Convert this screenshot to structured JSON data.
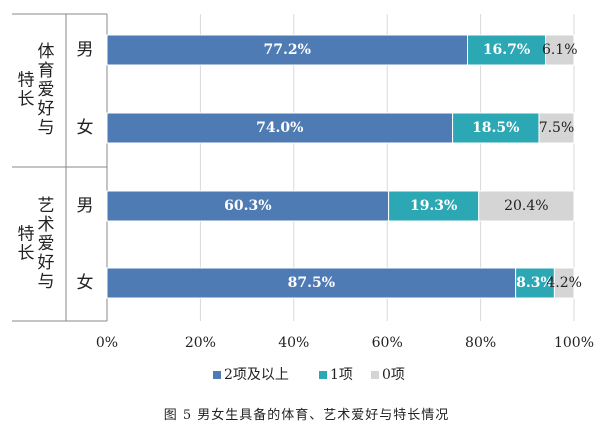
{
  "figure_caption": "图 5   男女生具备的体育、艺术爱好与特长情况",
  "chart_data": {
    "type": "bar",
    "orientation": "horizontal",
    "stacked": "percent",
    "groups": [
      {
        "label": "体育爱好与特长",
        "label_lines": [
          "体育爱好与",
          "特长"
        ]
      },
      {
        "label": "艺术爱好与特长",
        "label_lines": [
          "艺术爱好与",
          "特长"
        ]
      }
    ],
    "categories": [
      {
        "group": 0,
        "label": "男"
      },
      {
        "group": 0,
        "label": "女"
      },
      {
        "group": 1,
        "label": "男"
      },
      {
        "group": 1,
        "label": "女"
      }
    ],
    "series": [
      {
        "name": "2项及以上",
        "color": "#4f7bb4",
        "label_color": "#ffffff",
        "values": [
          77.2,
          74.0,
          60.3,
          87.5
        ],
        "labels": [
          "77.2%",
          "74.0%",
          "60.3%",
          "87.5%"
        ]
      },
      {
        "name": "1项",
        "color": "#2ca7b4",
        "label_color": "#ffffff",
        "values": [
          16.7,
          18.5,
          19.3,
          8.3
        ],
        "labels": [
          "16.7%",
          "18.5%",
          "19.3%",
          "8.3%"
        ]
      },
      {
        "name": "0项",
        "color": "#d5d5d5",
        "label_color": "#222222",
        "values": [
          6.1,
          7.5,
          20.4,
          4.2
        ],
        "labels": [
          "6.1%",
          "7.5%",
          "20.4%",
          "4.2%"
        ]
      }
    ],
    "x_ticks": [
      "0%",
      "20%",
      "40%",
      "60%",
      "80%",
      "100%"
    ],
    "xlim": [
      0,
      100
    ],
    "grid": true,
    "legend": "bottom"
  }
}
